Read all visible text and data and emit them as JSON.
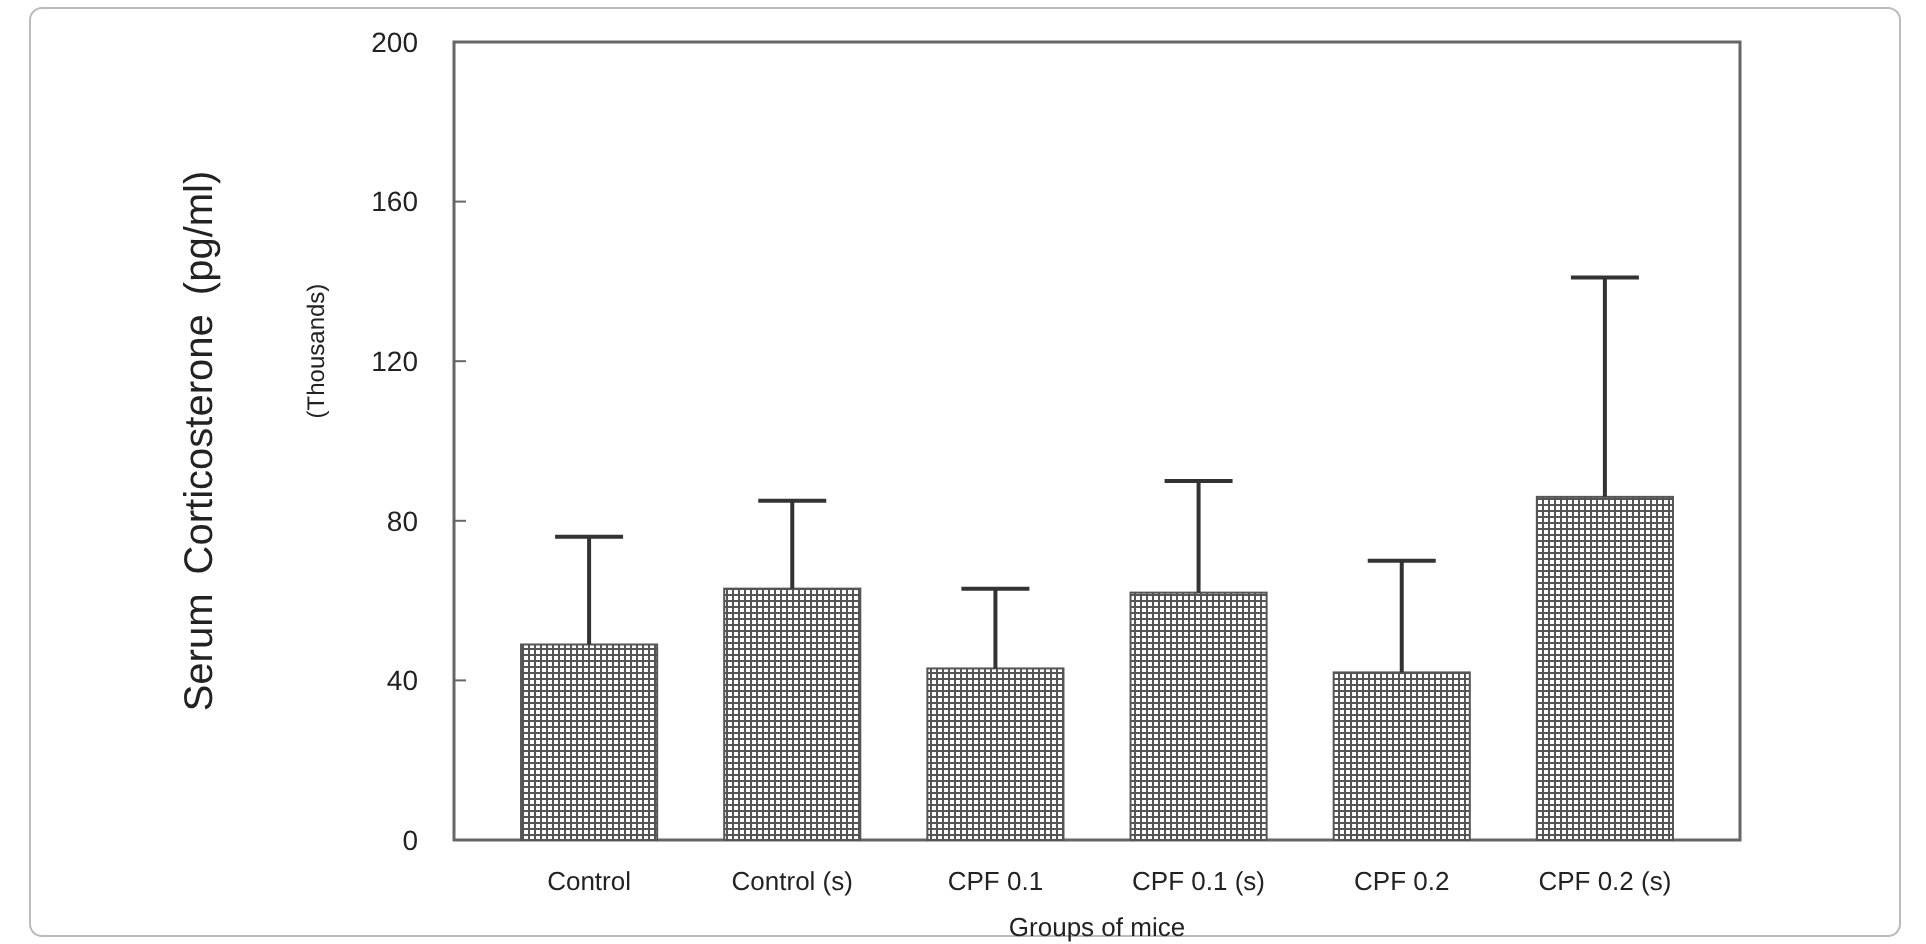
{
  "chart_data": {
    "type": "bar",
    "xlabel": "Groups of mice",
    "ylabel": "Serum Corticosterone (pg/ml)",
    "annotations": [
      "(Thousands)"
    ],
    "categories": [
      "Control",
      "Control (s)",
      "CPF 0.1",
      "CPF 0.1 (s)",
      "CPF 0.2",
      "CPF 0.2 (s)"
    ],
    "values": [
      49,
      63,
      43,
      62,
      42,
      86
    ],
    "errors": [
      [
        49,
        76
      ],
      [
        63,
        85
      ],
      [
        43,
        63
      ],
      [
        62,
        90
      ],
      [
        42,
        70
      ],
      [
        86,
        141
      ]
    ],
    "color": "#555555",
    "ylim": [
      0,
      200
    ],
    "yticks": [
      0,
      40,
      80,
      120,
      160,
      200
    ],
    "grid": false
  }
}
